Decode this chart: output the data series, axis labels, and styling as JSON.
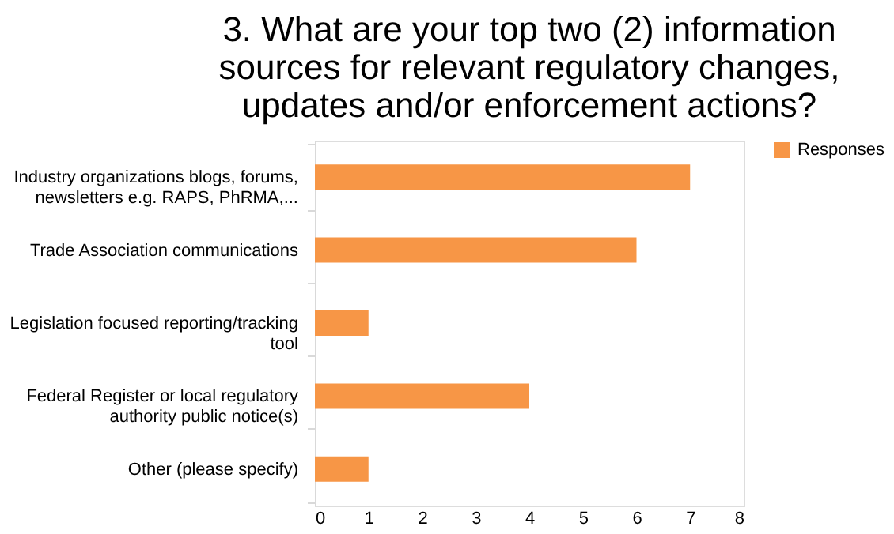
{
  "chart_data": {
    "type": "bar",
    "orientation": "horizontal",
    "title": "3. What are your top two (2) information sources for relevant regulatory changes, updates and/or enforcement actions?",
    "categories": [
      "Industry organizations blogs, forums, newsletters e.g. RAPS, PhRMA,...",
      "Trade Association communications",
      "Legislation focused reporting/tracking tool",
      "Federal Register or local regulatory authority public notice(s)",
      "Other (please specify)"
    ],
    "series": [
      {
        "name": "Responses",
        "color": "#f79646",
        "values": [
          7,
          6,
          1,
          4,
          1
        ]
      }
    ],
    "xlim": [
      0,
      8
    ],
    "xticks": [
      0,
      1,
      2,
      3,
      4,
      5,
      6,
      7,
      8
    ],
    "grid": false,
    "legend": "right"
  }
}
